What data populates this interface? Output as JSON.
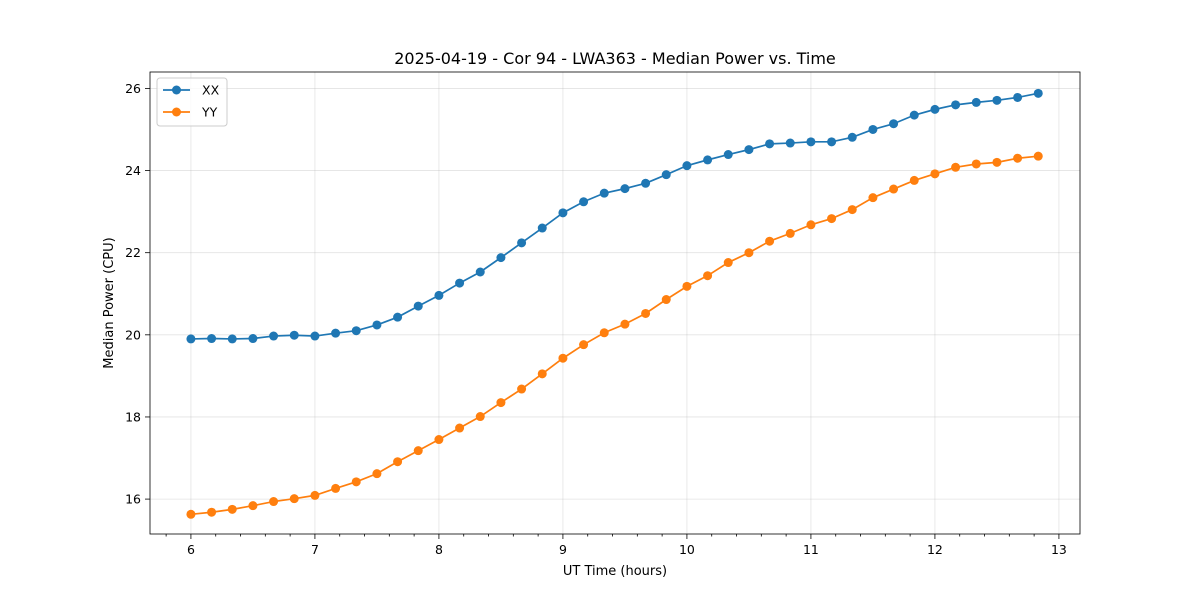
{
  "chart_data": {
    "type": "line",
    "title": "2025-04-19 - Cor 94 - LWA363 - Median Power vs. Time",
    "xlabel": "UT Time (hours)",
    "ylabel": "Median Power (CPU)",
    "xlim": [
      5.67,
      13.17
    ],
    "ylim": [
      15.15,
      26.4
    ],
    "xticks": [
      6,
      7,
      8,
      9,
      10,
      11,
      12,
      13
    ],
    "yticks": [
      16,
      18,
      20,
      22,
      24,
      26
    ],
    "grid": true,
    "legend_position": "upper-left",
    "x": [
      6.0,
      6.1667,
      6.3333,
      6.5,
      6.6667,
      6.8333,
      7.0,
      7.1667,
      7.3333,
      7.5,
      7.6667,
      7.8333,
      8.0,
      8.1667,
      8.3333,
      8.5,
      8.6667,
      8.8333,
      9.0,
      9.1667,
      9.3333,
      9.5,
      9.6667,
      9.8333,
      10.0,
      10.1667,
      10.3333,
      10.5,
      10.6667,
      10.8333,
      11.0,
      11.1667,
      11.3333,
      11.5,
      11.6667,
      11.8333,
      12.0,
      12.1667,
      12.3333,
      12.5,
      12.6667,
      12.8333
    ],
    "series": [
      {
        "name": "XX",
        "color": "#1f77b4",
        "values": [
          19.9,
          19.91,
          19.9,
          19.91,
          19.97,
          19.99,
          19.97,
          20.04,
          20.1,
          20.24,
          20.43,
          20.7,
          20.96,
          21.26,
          21.53,
          21.88,
          22.24,
          22.6,
          22.97,
          23.24,
          23.45,
          23.56,
          23.69,
          23.9,
          24.12,
          24.26,
          24.39,
          24.51,
          24.65,
          24.67,
          24.7,
          24.7,
          24.81,
          25.0,
          25.14,
          25.35,
          25.49,
          25.6,
          25.66,
          25.71,
          25.78,
          25.88
        ]
      },
      {
        "name": "YY",
        "color": "#ff7f0e",
        "values": [
          15.63,
          15.68,
          15.75,
          15.84,
          15.94,
          16.01,
          16.09,
          16.26,
          16.42,
          16.62,
          16.91,
          17.18,
          17.45,
          17.73,
          18.01,
          18.35,
          18.68,
          19.05,
          19.43,
          19.76,
          20.05,
          20.26,
          20.52,
          20.86,
          21.18,
          21.44,
          21.76,
          22.0,
          22.28,
          22.47,
          22.68,
          22.83,
          23.05,
          23.34,
          23.55,
          23.76,
          23.92,
          24.08,
          24.16,
          24.2,
          24.3,
          24.35
        ]
      }
    ]
  }
}
